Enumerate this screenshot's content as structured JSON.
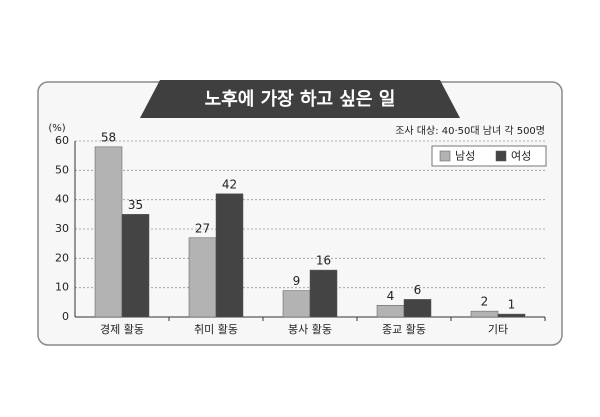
{
  "chart_data": {
    "type": "bar",
    "title": "노후에 가장 하고 싶은 일",
    "subtitle": "조사 대상: 40·50대 남녀 각 500명",
    "y_label": "(%)",
    "categories": [
      "경제 활동",
      "취미 활동",
      "봉사 활동",
      "종교 활동",
      "기타"
    ],
    "series": [
      {
        "name": "남성",
        "color": "#b3b3b3",
        "values": [
          58,
          27,
          9,
          4,
          2
        ]
      },
      {
        "name": "여성",
        "color": "#444444",
        "values": [
          35,
          42,
          16,
          6,
          1
        ]
      }
    ],
    "ylim": [
      0,
      60
    ],
    "yticks": [
      0,
      10,
      20,
      30,
      40,
      50,
      60
    ],
    "grid": true,
    "legend": "top-right"
  }
}
